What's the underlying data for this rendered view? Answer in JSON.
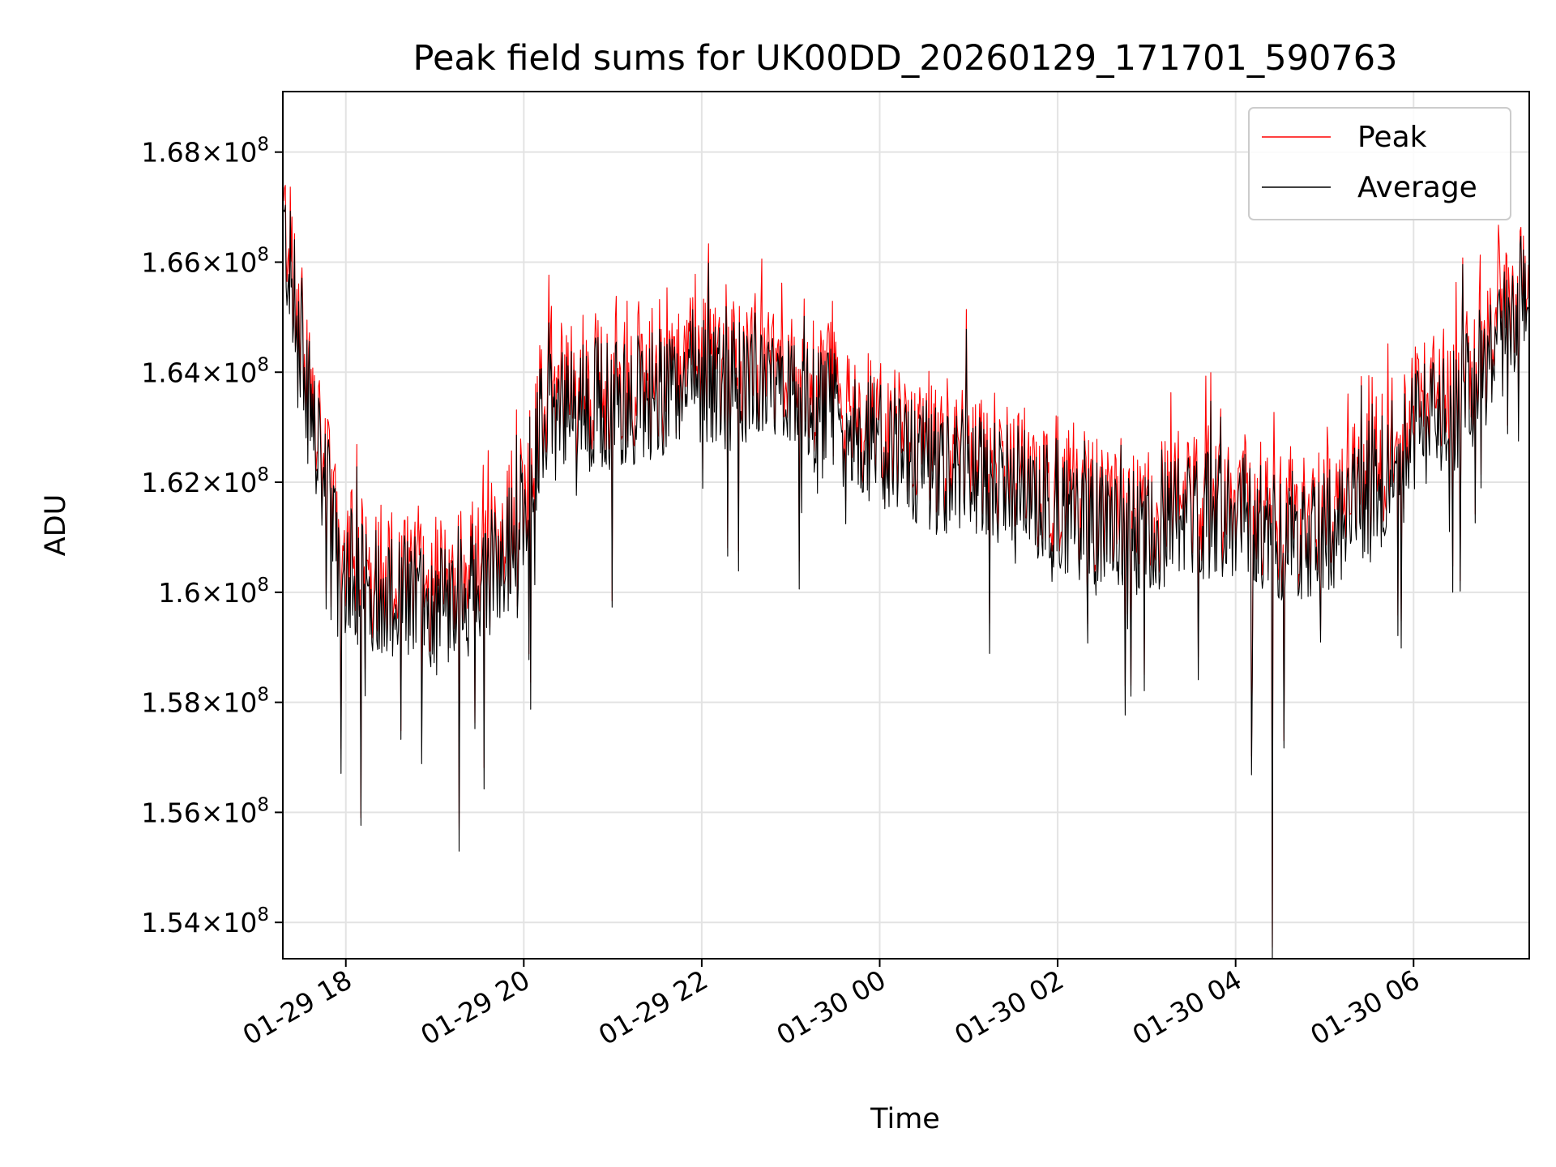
{
  "chart_data": {
    "type": "line",
    "title": "Peak field sums for UK00DD_20260129_171701_590763",
    "xlabel": "Time",
    "ylabel": "ADU",
    "x_range_hours_from_0129_18": [
      -0.708,
      13.3
    ],
    "ylim": [
      153340000,
      169100000
    ],
    "x_ticks": [
      {
        "hours": 0,
        "label": "01-29 18"
      },
      {
        "hours": 2,
        "label": "01-29 20"
      },
      {
        "hours": 4,
        "label": "01-29 22"
      },
      {
        "hours": 6,
        "label": "01-30 00"
      },
      {
        "hours": 8,
        "label": "01-30 02"
      },
      {
        "hours": 10,
        "label": "01-30 04"
      },
      {
        "hours": 12,
        "label": "01-30 06"
      }
    ],
    "y_ticks": [
      {
        "value": 154000000,
        "mantissa": "1.54",
        "exp": "8"
      },
      {
        "value": 156000000,
        "mantissa": "1.56",
        "exp": "8"
      },
      {
        "value": 158000000,
        "mantissa": "1.58",
        "exp": "8"
      },
      {
        "value": 160000000,
        "mantissa": "1.6",
        "exp": "8"
      },
      {
        "value": 162000000,
        "mantissa": "1.62",
        "exp": "8"
      },
      {
        "value": 164000000,
        "mantissa": "1.64",
        "exp": "8"
      },
      {
        "value": 166000000,
        "mantissa": "1.66",
        "exp": "8"
      },
      {
        "value": 168000000,
        "mantissa": "1.68",
        "exp": "8"
      }
    ],
    "grid": true,
    "legend_position": "top-right",
    "series": [
      {
        "name": "Peak",
        "color": "#ff0000"
      },
      {
        "name": "Average",
        "color": "#000000"
      }
    ],
    "trend_hours": [
      -0.708,
      -0.5,
      -0.3,
      0.0,
      0.5,
      1.0,
      1.5,
      1.9,
      2.2,
      2.6,
      3.0,
      3.5,
      4.0,
      4.5,
      5.0,
      5.5,
      6.0,
      6.5,
      7.0,
      7.5,
      8.0,
      8.5,
      9.0,
      9.5,
      10.0,
      10.5,
      11.0,
      11.5,
      12.0,
      12.5,
      13.0,
      13.3
    ],
    "trend_average": [
      166600000,
      164600000,
      162300000,
      160300000,
      160000000,
      159800000,
      159900000,
      161000000,
      163000000,
      163500000,
      163400000,
      163600000,
      163800000,
      163600000,
      163400000,
      163200000,
      162700000,
      162300000,
      162100000,
      162000000,
      161600000,
      161200000,
      161100000,
      161400000,
      161500000,
      161000000,
      161100000,
      161700000,
      162900000,
      163400000,
      164700000,
      165600000
    ]
  }
}
